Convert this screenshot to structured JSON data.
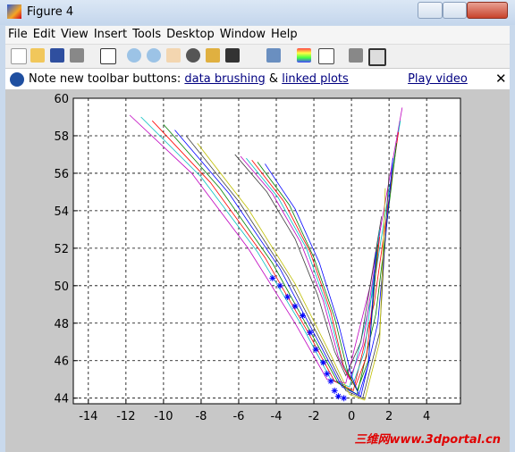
{
  "window": {
    "title": "Figure 4"
  },
  "menu": [
    "File",
    "Edit",
    "View",
    "Insert",
    "Tools",
    "Desktop",
    "Window",
    "Help"
  ],
  "info_bar": {
    "note": "Note new toolbar buttons:",
    "link1": "data brushing",
    "joiner": "&",
    "link2": "linked plots",
    "video": "Play video"
  },
  "watermark": "三维网www.3dportal.cn",
  "chart_data": {
    "type": "line",
    "xlim": [
      -14.8,
      5.8
    ],
    "ylim": [
      43.7,
      60
    ],
    "xticks": [
      -14,
      -12,
      -10,
      -8,
      -6,
      -4,
      -2,
      0,
      2,
      4
    ],
    "yticks": [
      44,
      46,
      48,
      50,
      52,
      54,
      56,
      58,
      60
    ],
    "grid": true,
    "series": [
      {
        "color": "#bf00bf",
        "x": [
          -11.8,
          -8.5,
          -5.5,
          -3,
          -1.3,
          -0.3,
          1,
          2.7
        ],
        "values": [
          59.1,
          56,
          52,
          48,
          45,
          44.8,
          50,
          59.5
        ]
      },
      {
        "color": "#00bfbf",
        "x": [
          -11.2,
          -8,
          -5,
          -2.6,
          -1.1,
          -0.1,
          1.1,
          2.6
        ],
        "values": [
          59,
          55.8,
          51.8,
          47.8,
          45,
          44.6,
          49.5,
          58.8
        ]
      },
      {
        "color": "#ff0000",
        "x": [
          -10.6,
          -7.5,
          -4.6,
          -2.3,
          -0.9,
          0.1,
          1.2,
          2.5
        ],
        "values": [
          58.8,
          55.5,
          51.5,
          47.5,
          44.9,
          44.4,
          49,
          58.2
        ]
      },
      {
        "color": "#008000",
        "x": [
          -10,
          -7,
          -4.2,
          -2,
          -0.7,
          0.3,
          1.3,
          2.4
        ],
        "values": [
          58.6,
          55.2,
          51.2,
          47.2,
          44.8,
          44.2,
          48.5,
          57.6
        ]
      },
      {
        "color": "#0000ff",
        "x": [
          -9.4,
          -6.5,
          -3.8,
          -1.7,
          -0.5,
          0.5,
          1.4,
          2.2
        ],
        "values": [
          58.3,
          54.9,
          50.9,
          46.9,
          44.6,
          44.1,
          48,
          56.8
        ]
      },
      {
        "color": "#404040",
        "x": [
          -8.8,
          -6,
          -3.4,
          -1.4,
          -0.3,
          0.6,
          1.5,
          2.0
        ],
        "values": [
          58,
          54.5,
          50.5,
          46.6,
          44.4,
          44,
          47.5,
          56
        ]
      },
      {
        "color": "#bfbf00",
        "x": [
          -8.2,
          -5.5,
          -3,
          -1.1,
          -0.1,
          0.7,
          1.5,
          1.8
        ],
        "values": [
          57.6,
          54.1,
          50.1,
          46.3,
          44.2,
          43.9,
          47,
          55.2
        ]
      },
      {
        "color": "#404040",
        "x": [
          -6.2,
          -4.5,
          -3,
          -1.8,
          -0.9,
          -0.3,
          0.5,
          1.6
        ],
        "values": [
          57,
          55,
          52.5,
          49.5,
          46.5,
          45.2,
          47,
          53.7
        ]
      },
      {
        "color": "#bf00bf",
        "x": [
          -5.9,
          -4.2,
          -2.7,
          -1.5,
          -0.7,
          -0.1,
          0.6,
          1.6
        ],
        "values": [
          56.9,
          54.9,
          52.3,
          49.2,
          46.2,
          45,
          46.8,
          53.4
        ]
      },
      {
        "color": "#00bfbf",
        "x": [
          -5.6,
          -3.9,
          -2.4,
          -1.3,
          -0.5,
          0.1,
          0.7,
          1.5
        ],
        "values": [
          56.8,
          54.7,
          52,
          48.9,
          45.9,
          44.8,
          46.5,
          53
        ]
      },
      {
        "color": "#ff0000",
        "x": [
          -5.3,
          -3.6,
          -2.2,
          -1.1,
          -0.4,
          0.2,
          0.8,
          1.5
        ],
        "values": [
          56.7,
          54.5,
          51.8,
          48.6,
          45.6,
          44.6,
          46.2,
          52.6
        ]
      },
      {
        "color": "#008000",
        "x": [
          -5,
          -3.3,
          -2,
          -0.9,
          -0.2,
          0.3,
          0.9,
          1.4
        ],
        "values": [
          56.6,
          54.3,
          51.5,
          48.3,
          45.4,
          44.4,
          46,
          52.2
        ]
      },
      {
        "color": "#0000ff",
        "x": [
          -4.6,
          -3,
          -1.7,
          -0.7,
          0,
          0.4,
          0.9,
          1.3
        ],
        "values": [
          56.5,
          54.1,
          51.2,
          48,
          45.2,
          44.2,
          45.8,
          51.8
        ]
      },
      {
        "color": "#0000ff",
        "marker": "*",
        "line": false,
        "x": [
          -4.2,
          -3.8,
          -3.4,
          -3,
          -2.6,
          -2.2,
          -1.9,
          -1.5,
          -1.3,
          -1.1,
          -0.9,
          -0.7,
          -0.4
        ],
        "values": [
          50.4,
          50,
          49.4,
          48.9,
          48.4,
          47.5,
          46.6,
          45.9,
          45.3,
          44.9,
          44.4,
          44.1,
          44
        ]
      }
    ]
  }
}
